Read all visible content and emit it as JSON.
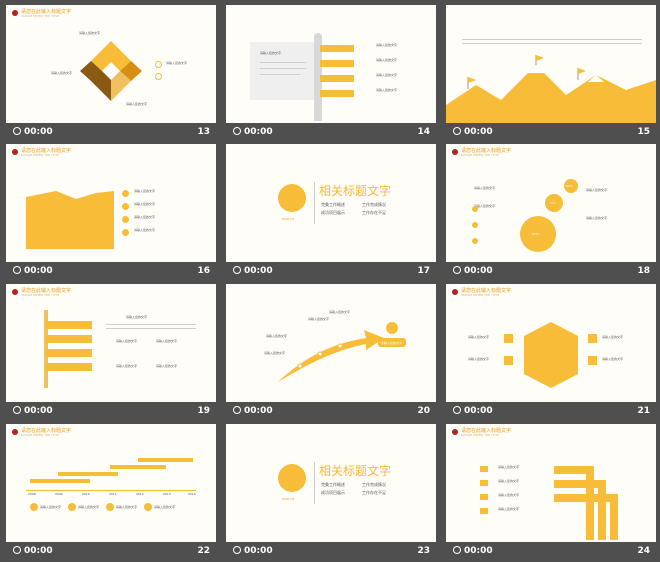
{
  "clock": "00:00",
  "slides": [
    {
      "number": "13",
      "header_title": "请您在此输入标题文字",
      "header_sub": "PLEASE ENTER THE TITLE",
      "labels": [
        "请输入您的文字",
        "请输入您的文字",
        "请输入您的文字",
        "请输入您的文字"
      ]
    },
    {
      "number": "14",
      "labels": [
        "请输入您的文字",
        "请输入您的文字",
        "请输入您的文字",
        "请输入您的文字",
        "请输入您的文字",
        "请输入您的文字",
        "请输入您的文字"
      ]
    },
    {
      "number": "15"
    },
    {
      "number": "16",
      "header_title": "请您在此输入标题文字",
      "header_sub": "PLEASE ENTER THE TITLE",
      "labels": [
        "请输入您的文字",
        "请输入您的文字",
        "请输入您的文字",
        "请输入您的文字"
      ]
    },
    {
      "number": "17",
      "title": "相关标题文字",
      "part": "PART 03",
      "bullets": [
        "完美工作概述",
        "工作完成情况",
        "成功项目展示",
        "工作存在不足"
      ]
    },
    {
      "number": "18",
      "header_title": "请您在此输入标题文字",
      "header_sub": "PLEASE ENTER THE TITLE",
      "labels": [
        "请输入您的文字",
        "请输入您的文字",
        "请输入您的文字",
        "请输入您的文字"
      ],
      "percents": [
        "60%",
        "70%",
        "80%",
        "80%"
      ]
    },
    {
      "number": "19",
      "header_title": "请您在此输入标题文字",
      "header_sub": "PLEASE ENTER THE TITLE",
      "labels": [
        "请输入您的文字",
        "请输入您的文字",
        "请输入您的文字",
        "请输入您的文字",
        "请输入您的文字",
        "请输入您的文字",
        "请输入您的文字"
      ]
    },
    {
      "number": "20",
      "labels": [
        "请输入您的文字",
        "请输入您的文字",
        "请输入您的文字",
        "请输入您的文字"
      ],
      "badge": "请输入您的文字"
    },
    {
      "number": "21",
      "header_title": "请您在此输入标题文字",
      "header_sub": "PLEASE ENTER THE TITLE",
      "labels": [
        "请输入您的文字",
        "请输入您的文字",
        "请输入您的文字",
        "请输入您的文字"
      ]
    },
    {
      "number": "22",
      "header_title": "请您在此输入标题文字",
      "header_sub": "PLEASE ENTER THE TITLE",
      "years": [
        "2008",
        "2009",
        "2010",
        "2011",
        "2012",
        "2013",
        "2014"
      ],
      "labels": [
        "请输入您的文字",
        "请输入您的文字",
        "请输入您的文字",
        "请输入您的文字",
        "请输入您的文字"
      ]
    },
    {
      "number": "23",
      "title": "相关标题文字",
      "part": "PART 04",
      "bullets": [
        "完美工作概述",
        "工作完成情况",
        "成功项目展示",
        "工作存在不足"
      ]
    },
    {
      "number": "24",
      "header_title": "请您在此输入标题文字",
      "header_sub": "PLEASE ENTER THE TITLE",
      "labels": [
        "请输入您的文字",
        "请输入您的文字",
        "请输入您的文字",
        "请输入您的文字"
      ]
    }
  ]
}
